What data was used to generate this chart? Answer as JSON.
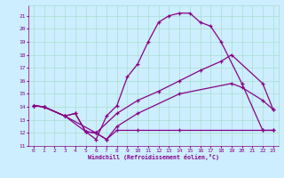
{
  "xlabel": "Windchill (Refroidissement éolien,°C)",
  "bg_color": "#cceeff",
  "grid_color": "#aaddcc",
  "line_color": "#880088",
  "xlim": [
    -0.5,
    23.5
  ],
  "ylim": [
    11,
    21.8
  ],
  "xticks": [
    0,
    1,
    2,
    3,
    4,
    5,
    6,
    7,
    8,
    9,
    10,
    11,
    12,
    13,
    14,
    15,
    16,
    17,
    18,
    19,
    20,
    21,
    22,
    23
  ],
  "yticks": [
    11,
    12,
    13,
    14,
    15,
    16,
    17,
    18,
    19,
    20,
    21
  ],
  "lines": [
    {
      "x": [
        0,
        1,
        3,
        4,
        5,
        6,
        7,
        8,
        9,
        10,
        11,
        12,
        13,
        14,
        15,
        16,
        17,
        18,
        20,
        22,
        23
      ],
      "y": [
        14.1,
        14.0,
        13.3,
        13.5,
        12.1,
        11.5,
        13.3,
        14.1,
        16.3,
        17.3,
        19.0,
        20.5,
        21.0,
        21.2,
        21.2,
        20.5,
        20.2,
        19.0,
        15.8,
        12.2,
        12.2
      ]
    },
    {
      "x": [
        0,
        1,
        3,
        6,
        8,
        10,
        12,
        14,
        16,
        18,
        19,
        22,
        23
      ],
      "y": [
        14.1,
        14.0,
        13.3,
        12.0,
        13.5,
        14.5,
        15.2,
        16.0,
        16.8,
        17.5,
        18.0,
        15.8,
        13.8
      ]
    },
    {
      "x": [
        0,
        1,
        3,
        4,
        5,
        6,
        7,
        8,
        10,
        14,
        22,
        23
      ],
      "y": [
        14.1,
        14.0,
        13.3,
        13.5,
        12.1,
        12.0,
        11.5,
        12.2,
        12.2,
        12.2,
        12.2,
        12.2
      ]
    },
    {
      "x": [
        0,
        1,
        3,
        5,
        6,
        7,
        8,
        10,
        14,
        19,
        20,
        22,
        23
      ],
      "y": [
        14.1,
        14.0,
        13.3,
        12.1,
        12.0,
        11.5,
        12.5,
        13.5,
        15.0,
        15.8,
        15.5,
        14.5,
        13.8
      ]
    }
  ]
}
